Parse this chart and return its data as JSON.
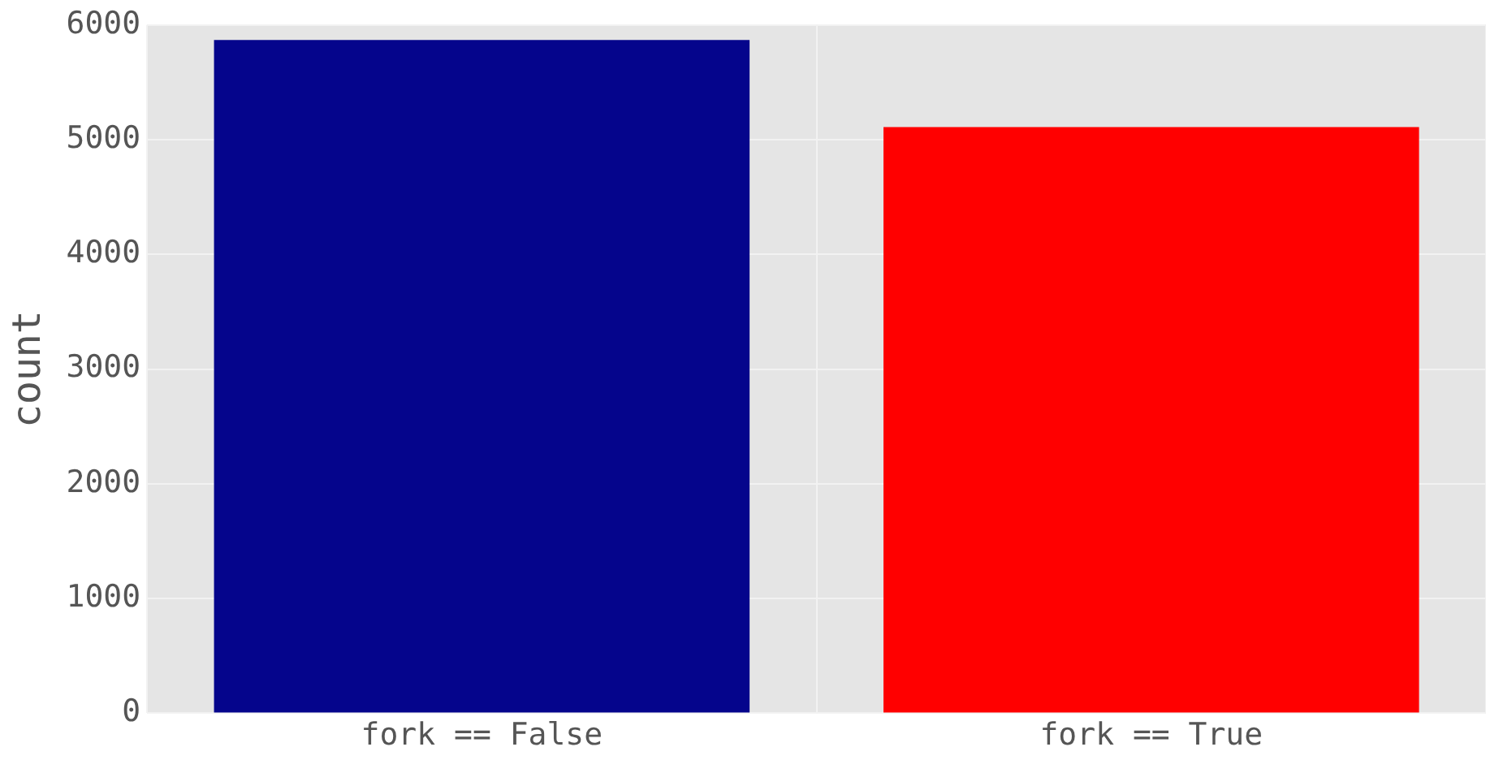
{
  "chart_data": {
    "type": "bar",
    "ylabel": "count",
    "categories": [
      "fork == False",
      "fork == True"
    ],
    "values": [
      5870,
      5110
    ],
    "colors": [
      "#05058c",
      "#ff0000"
    ],
    "ylim": [
      0,
      6000
    ],
    "yticks": [
      0,
      1000,
      2000,
      3000,
      4000,
      5000,
      6000
    ],
    "grid": true,
    "legend": false
  }
}
